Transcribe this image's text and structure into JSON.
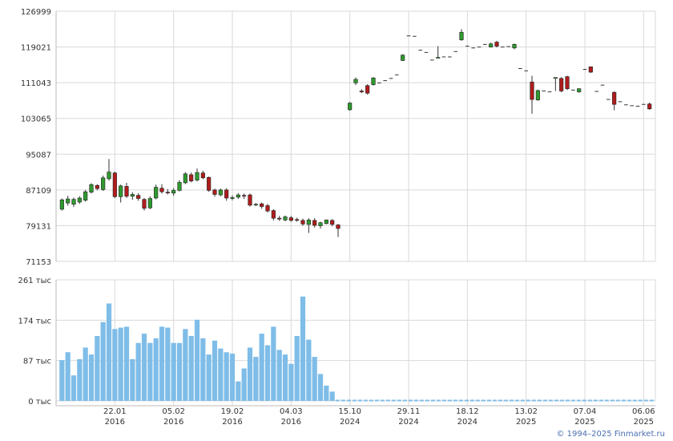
{
  "copyright": "© 1994–2025 Finmarket.ru",
  "colors": {
    "up": "#2e9a2e",
    "down": "#b01c1c",
    "volume": "#7fbde8",
    "grid": "#d9d9d9"
  },
  "chart_data": [
    {
      "type": "candlestick",
      "ylim": [
        71153,
        126999
      ],
      "y_ticks": [
        "126999",
        "119021",
        "111043",
        "103065",
        "95087",
        "87109",
        "79131",
        "71153"
      ],
      "x_ticks": [
        {
          "index": 9,
          "line1": "22.01",
          "line2": "2016"
        },
        {
          "index": 19,
          "line1": "05.02",
          "line2": "2016"
        },
        {
          "index": 29,
          "line1": "19.02",
          "line2": "2016"
        },
        {
          "index": 39,
          "line1": "04.03",
          "line2": "2016"
        },
        {
          "index": 49,
          "line1": "15.10",
          "line2": "2024"
        },
        {
          "index": 59,
          "line1": "29.11",
          "line2": "2024"
        },
        {
          "index": 69,
          "line1": "18.12",
          "line2": "2024"
        },
        {
          "index": 79,
          "line1": "13.02",
          "line2": "2025"
        },
        {
          "index": 89,
          "line1": "07.04",
          "line2": "2025"
        },
        {
          "index": 99,
          "line1": "06.06",
          "line2": "2025"
        }
      ],
      "candles": [
        [
          82800,
          84900,
          82500,
          85200
        ],
        [
          84200,
          85100,
          83600,
          85800
        ],
        [
          83900,
          85000,
          83300,
          85400
        ],
        [
          84400,
          85300,
          84000,
          85700
        ],
        [
          84800,
          86700,
          84500,
          87100
        ],
        [
          86600,
          88300,
          86300,
          88600
        ],
        [
          88100,
          87400,
          87000,
          88400
        ],
        [
          87200,
          89800,
          86900,
          90300
        ],
        [
          89600,
          91100,
          89200,
          94000
        ],
        [
          90900,
          85600,
          85300,
          91200
        ],
        [
          85600,
          88000,
          84300,
          88300
        ],
        [
          87900,
          85700,
          85300,
          88700
        ],
        [
          85700,
          86100,
          84900,
          86600
        ],
        [
          85900,
          85200,
          84700,
          86400
        ],
        [
          85000,
          83000,
          82500,
          85300
        ],
        [
          83100,
          85200,
          82800,
          85700
        ],
        [
          85300,
          87700,
          85000,
          88300
        ],
        [
          87500,
          86700,
          86300,
          88400
        ],
        [
          86600,
          86500,
          86100,
          87300
        ],
        [
          86400,
          87000,
          85800,
          87500
        ],
        [
          87000,
          88800,
          86800,
          89300
        ],
        [
          88700,
          90700,
          88400,
          91100
        ],
        [
          90500,
          89100,
          88800,
          91000
        ],
        [
          89300,
          91000,
          89000,
          91900
        ],
        [
          90900,
          89800,
          89500,
          91400
        ],
        [
          89900,
          87000,
          86700,
          90100
        ],
        [
          87100,
          86100,
          85600,
          87400
        ],
        [
          86000,
          87100,
          85700,
          87400
        ],
        [
          87100,
          85300,
          84700,
          87500
        ],
        [
          85200,
          85400,
          84800,
          85900
        ],
        [
          85500,
          86000,
          85100,
          86400
        ],
        [
          85900,
          85800,
          85100,
          86300
        ],
        [
          86000,
          83700,
          83400,
          86300
        ],
        [
          83800,
          83900,
          83500,
          84200
        ],
        [
          84000,
          83400,
          82900,
          84300
        ],
        [
          83600,
          82400,
          82100,
          84000
        ],
        [
          82500,
          80800,
          80300,
          82800
        ],
        [
          80800,
          80600,
          80200,
          81300
        ],
        [
          80400,
          81100,
          80100,
          81400
        ],
        [
          80900,
          80300,
          80000,
          81300
        ],
        [
          80500,
          80400,
          80000,
          80900
        ],
        [
          80300,
          79500,
          79100,
          80700
        ],
        [
          79400,
          80400,
          77500,
          80800
        ],
        [
          80300,
          79200,
          78700,
          80800
        ],
        [
          79100,
          79800,
          78500,
          80000
        ],
        [
          79600,
          80400,
          79400,
          80500
        ],
        [
          80300,
          79400,
          79000,
          80600
        ],
        [
          79300,
          78500,
          76600,
          79500
        ],
        null,
        [
          105000,
          106500,
          104800,
          106700
        ],
        [
          111000,
          111800,
          110500,
          112200
        ],
        [
          109200,
          109000,
          108700,
          109600
        ],
        [
          110400,
          108700,
          108400,
          110700
        ],
        [
          110600,
          112100,
          110400,
          112300
        ],
        [
          111000,
          111000,
          111000,
          111000
        ],
        [
          111500,
          111500,
          111500,
          111500
        ],
        [
          112000,
          112000,
          112000,
          112000
        ],
        [
          112800,
          112800,
          112800,
          112800
        ],
        [
          116000,
          117200,
          115900,
          117400
        ],
        [
          121500,
          121500,
          121500,
          121500
        ],
        [
          121400,
          121400,
          121400,
          121400
        ],
        [
          118300,
          118300,
          118300,
          118300
        ],
        [
          117800,
          117800,
          117800,
          117800
        ],
        [
          116100,
          116100,
          116100,
          116100
        ],
        [
          116700,
          116700,
          116700,
          119200
        ],
        [
          116800,
          116800,
          116800,
          116800
        ],
        [
          116800,
          116800,
          116800,
          116800
        ],
        [
          118000,
          118000,
          118000,
          118000
        ],
        [
          120600,
          122300,
          120400,
          123000
        ],
        [
          119200,
          119200,
          119200,
          119200
        ],
        [
          118800,
          118800,
          118800,
          118800
        ],
        [
          119000,
          119000,
          119000,
          119000
        ],
        [
          119600,
          119600,
          119600,
          119600
        ],
        [
          119000,
          119700,
          118900,
          120000
        ],
        [
          120100,
          119200,
          118900,
          120400
        ],
        [
          119000,
          119000,
          119000,
          119000
        ],
        [
          119100,
          119100,
          119100,
          119100
        ],
        [
          118800,
          119600,
          118500,
          119800
        ],
        [
          114200,
          114200,
          114200,
          114200
        ],
        [
          113700,
          113700,
          113700,
          113700
        ],
        [
          111200,
          107300,
          104100,
          112600
        ],
        [
          107200,
          109300,
          107000,
          109500
        ],
        [
          109200,
          109200,
          109200,
          109200
        ],
        [
          109000,
          109000,
          109000,
          109000
        ],
        [
          112200,
          112200,
          109200,
          112200
        ],
        [
          112000,
          109200,
          108900,
          112300
        ],
        [
          112400,
          109700,
          109400,
          112600
        ],
        [
          109400,
          109400,
          109400,
          109400
        ],
        [
          109000,
          109700,
          108800,
          109800
        ],
        [
          114000,
          114000,
          114000,
          114000
        ],
        [
          114600,
          113400,
          113200,
          114600
        ],
        [
          109100,
          109100,
          109100,
          109100
        ],
        [
          110500,
          110500,
          110500,
          110500
        ],
        [
          107300,
          107300,
          107300,
          107300
        ],
        [
          108900,
          106200,
          104900,
          109100
        ],
        [
          106800,
          106800,
          106800,
          106800
        ],
        [
          106100,
          106100,
          106100,
          106100
        ],
        [
          105900,
          105900,
          105900,
          105900
        ],
        [
          105800,
          105800,
          105800,
          105800
        ],
        [
          106200,
          106200,
          106200,
          106200
        ],
        [
          106300,
          105200,
          105000,
          106600
        ]
      ]
    },
    {
      "type": "bar",
      "ylim": [
        0,
        261000
      ],
      "y_ticks": [
        "261 тыс",
        "174 тыс",
        "87 тыс",
        "0 тыс"
      ],
      "values": [
        88000,
        105000,
        55000,
        90000,
        115000,
        100000,
        140000,
        170000,
        210000,
        155000,
        158000,
        160000,
        90000,
        125000,
        145000,
        125000,
        135000,
        160000,
        158000,
        125000,
        125000,
        155000,
        140000,
        175000,
        135000,
        100000,
        130000,
        113000,
        105000,
        102000,
        42000,
        70000,
        115000,
        95000,
        145000,
        120000,
        160000,
        110000,
        100000,
        80000,
        140000,
        225000,
        132000,
        95000,
        58000,
        33000,
        20000
      ]
    }
  ]
}
